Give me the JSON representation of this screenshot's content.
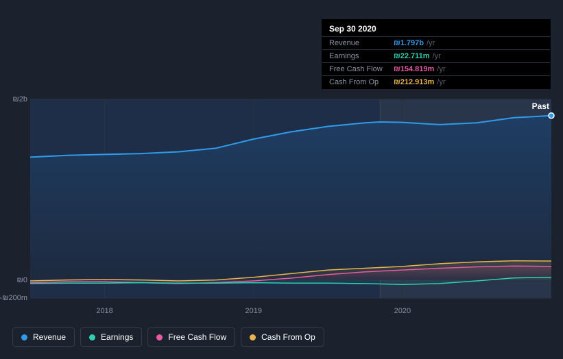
{
  "chart": {
    "type": "area",
    "currency_symbol": "₪",
    "background_color": "#1b222d",
    "plot_background_left": "#1e2e48",
    "plot_background_right": "#28354a",
    "grid_color": "#2a3340",
    "divider_color": "#3a4456",
    "y_axis": {
      "min": -200000000,
      "max": 2000000000,
      "ticks": [
        {
          "value": 2000000000,
          "label": "₪2b"
        },
        {
          "value": 0,
          "label": "₪0"
        },
        {
          "value": -200000000,
          "label": "-₪200m"
        }
      ],
      "label_color": "#8a94a6",
      "label_fontsize": 11
    },
    "x_axis": {
      "min": 2017.5,
      "max": 2021.0,
      "ticks": [
        {
          "value": 2018,
          "label": "2018"
        },
        {
          "value": 2019,
          "label": "2019"
        },
        {
          "value": 2020,
          "label": "2020"
        }
      ],
      "label_color": "#8a94a6",
      "label_fontsize": 11
    },
    "past_label": "Past",
    "divider_x": 2019.85,
    "current_marker_x": 2021.0,
    "series": [
      {
        "key": "revenue",
        "name": "Revenue",
        "color": "#2f9ceb",
        "fill_start": "#1f3d63",
        "fill_end": "#1d2a3f",
        "line_width": 2,
        "data": [
          [
            2017.5,
            1360000000
          ],
          [
            2017.75,
            1380000000
          ],
          [
            2018.0,
            1390000000
          ],
          [
            2018.25,
            1400000000
          ],
          [
            2018.5,
            1420000000
          ],
          [
            2018.75,
            1460000000
          ],
          [
            2019.0,
            1560000000
          ],
          [
            2019.25,
            1640000000
          ],
          [
            2019.5,
            1700000000
          ],
          [
            2019.75,
            1740000000
          ],
          [
            2019.85,
            1750000000
          ],
          [
            2020.0,
            1745000000
          ],
          [
            2020.25,
            1720000000
          ],
          [
            2020.5,
            1740000000
          ],
          [
            2020.75,
            1797000000
          ],
          [
            2021.0,
            1820000000
          ]
        ]
      },
      {
        "key": "cash_from_op",
        "name": "Cash From Op",
        "color": "#eab54e",
        "fill_start": "rgba(234,181,78,0.18)",
        "fill_end": "rgba(234,181,78,0.02)",
        "line_width": 1.5,
        "data": [
          [
            2017.5,
            -10000000
          ],
          [
            2017.75,
            0
          ],
          [
            2018.0,
            5000000
          ],
          [
            2018.25,
            0
          ],
          [
            2018.5,
            -10000000
          ],
          [
            2018.75,
            0
          ],
          [
            2019.0,
            30000000
          ],
          [
            2019.25,
            70000000
          ],
          [
            2019.5,
            110000000
          ],
          [
            2019.75,
            130000000
          ],
          [
            2020.0,
            150000000
          ],
          [
            2020.25,
            180000000
          ],
          [
            2020.5,
            200000000
          ],
          [
            2020.75,
            213000000
          ],
          [
            2021.0,
            210000000
          ]
        ]
      },
      {
        "key": "free_cash_flow",
        "name": "Free Cash Flow",
        "color": "#e85aa2",
        "fill_start": "rgba(232,90,162,0.15)",
        "fill_end": "rgba(232,90,162,0.02)",
        "line_width": 1.5,
        "data": [
          [
            2017.5,
            -30000000
          ],
          [
            2017.75,
            -20000000
          ],
          [
            2018.0,
            -20000000
          ],
          [
            2018.25,
            -30000000
          ],
          [
            2018.5,
            -40000000
          ],
          [
            2018.75,
            -30000000
          ],
          [
            2019.0,
            -10000000
          ],
          [
            2019.25,
            20000000
          ],
          [
            2019.5,
            60000000
          ],
          [
            2019.75,
            90000000
          ],
          [
            2020.0,
            110000000
          ],
          [
            2020.25,
            130000000
          ],
          [
            2020.5,
            145000000
          ],
          [
            2020.75,
            155000000
          ],
          [
            2021.0,
            150000000
          ]
        ]
      },
      {
        "key": "earnings",
        "name": "Earnings",
        "color": "#2fcfb0",
        "fill_start": "rgba(47,207,176,0.15)",
        "fill_end": "rgba(47,207,176,0.02)",
        "line_width": 1.5,
        "data": [
          [
            2017.5,
            -40000000
          ],
          [
            2017.75,
            -35000000
          ],
          [
            2018.0,
            -35000000
          ],
          [
            2018.25,
            -30000000
          ],
          [
            2018.5,
            -35000000
          ],
          [
            2018.75,
            -35000000
          ],
          [
            2019.0,
            -30000000
          ],
          [
            2019.25,
            -35000000
          ],
          [
            2019.5,
            -35000000
          ],
          [
            2019.75,
            -40000000
          ],
          [
            2020.0,
            -50000000
          ],
          [
            2020.25,
            -40000000
          ],
          [
            2020.5,
            -10000000
          ],
          [
            2020.75,
            23000000
          ],
          [
            2021.0,
            30000000
          ]
        ]
      }
    ]
  },
  "tooltip": {
    "date": "Sep 30 2020",
    "rows": [
      {
        "label": "Revenue",
        "value": "₪1.797b",
        "unit": "/yr",
        "color": "#2f9ceb"
      },
      {
        "label": "Earnings",
        "value": "₪22.711m",
        "unit": "/yr",
        "color": "#2fcfb0"
      },
      {
        "label": "Free Cash Flow",
        "value": "₪154.819m",
        "unit": "/yr",
        "color": "#e85aa2"
      },
      {
        "label": "Cash From Op",
        "value": "₪212.913m",
        "unit": "/yr",
        "color": "#eab54e"
      }
    ],
    "background": "#000000",
    "label_color": "#8a94a6",
    "unit_color": "#5a6374",
    "border_color": "#2a3340"
  },
  "legend": {
    "items": [
      {
        "key": "revenue",
        "label": "Revenue",
        "color": "#2f9ceb"
      },
      {
        "key": "earnings",
        "label": "Earnings",
        "color": "#2fcfb0"
      },
      {
        "key": "free_cash_flow",
        "label": "Free Cash Flow",
        "color": "#e85aa2"
      },
      {
        "key": "cash_from_op",
        "label": "Cash From Op",
        "color": "#eab54e"
      }
    ],
    "border_color": "#323c4d",
    "text_color": "#ffffff",
    "fontsize": 12
  }
}
